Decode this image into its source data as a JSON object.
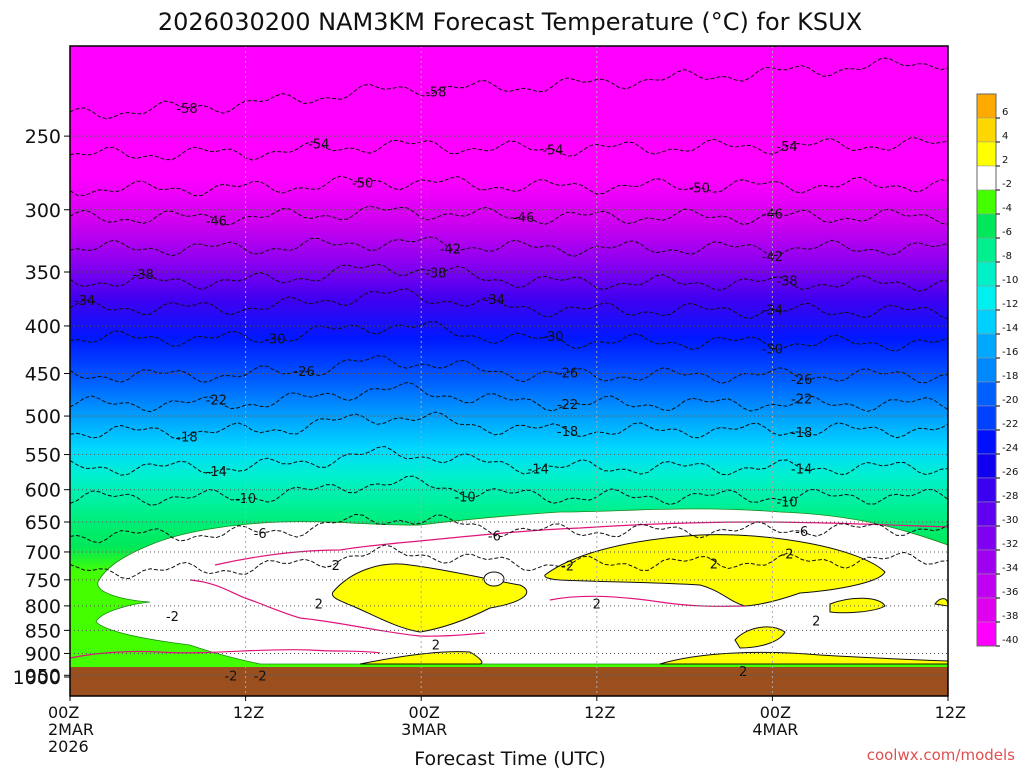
{
  "title": "2026030200 NAM3KM Forecast Temperature (°C) for KSUX",
  "watermark": "coolwx.com/models",
  "chart_data": {
    "type": "heatmap",
    "title": "2026030200 NAM3KM Forecast Temperature (°C) for KSUX",
    "xlabel": "Forecast Time (UTC)",
    "ylabel": "",
    "y_scale": "log",
    "y_reversed": true,
    "xlim_hours": [
      0,
      60
    ],
    "ylim": [
      1000,
      200
    ],
    "y_ticks": [
      250,
      300,
      350,
      400,
      450,
      500,
      550,
      600,
      650,
      700,
      750,
      800,
      850,
      900,
      950,
      1000
    ],
    "x_ticks": [
      {
        "hour": 0,
        "lines": [
          "00Z",
          "2MAR",
          "2026"
        ]
      },
      {
        "hour": 12,
        "lines": [
          "12Z"
        ]
      },
      {
        "hour": 24,
        "lines": [
          "00Z",
          "3MAR"
        ]
      },
      {
        "hour": 36,
        "lines": [
          "12Z"
        ]
      },
      {
        "hour": 48,
        "lines": [
          "00Z",
          "4MAR"
        ]
      },
      {
        "hour": 60,
        "lines": [
          "12Z"
        ]
      }
    ],
    "grid": true,
    "legend_position": "right",
    "colorbar_labels": [
      "6",
      "4",
      "2",
      "-2",
      "-4",
      "-6",
      "-8",
      "-10",
      "-12",
      "-14",
      "-16",
      "-18",
      "-20",
      "-22",
      "-24",
      "-26",
      "-28",
      "-30",
      "-32",
      "-34",
      "-36",
      "-38",
      "-40"
    ],
    "colorbar_colors": [
      "#ffaa00",
      "#ffd700",
      "#ffff00",
      "#ffffff",
      "#44ff00",
      "#00e85a",
      "#00f090",
      "#00f0c8",
      "#00f0f0",
      "#00d0ff",
      "#00a8ff",
      "#0088ff",
      "#0060ff",
      "#0040ff",
      "#0010ff",
      "#1000f0",
      "#3c00f0",
      "#6000f0",
      "#8000f0",
      "#a000f0",
      "#c000f0",
      "#e000f0",
      "#ff00ff"
    ],
    "ground_color": "#9b4e1e",
    "contours": [
      {
        "value": -58,
        "p0": 237,
        "p60": 208,
        "labels": [
          8,
          25
        ]
      },
      {
        "value": -54,
        "p0": 262,
        "p60": 255,
        "labels": [
          17,
          33,
          49
        ]
      },
      {
        "value": -50,
        "p0": 285,
        "p60": 282,
        "labels": [
          20,
          43
        ]
      },
      {
        "value": -46,
        "p0": 306,
        "p60": 305,
        "labels": [
          10,
          31,
          48
        ]
      },
      {
        "value": -42,
        "p0": 330,
        "p60": 330,
        "labels": [
          26,
          48
        ]
      },
      {
        "value": -38,
        "p0": 358,
        "p60": 360,
        "labels": [
          5,
          25,
          49
        ]
      },
      {
        "value": -34,
        "p0": 382,
        "p60": 386,
        "labels": [
          1,
          29,
          48
        ]
      },
      {
        "value": -30,
        "p0": 412,
        "p60": 418,
        "labels": [
          14,
          33,
          48
        ]
      },
      {
        "value": -26,
        "p0": 452,
        "p60": 452,
        "labels": [
          16,
          34,
          50
        ]
      },
      {
        "value": -22,
        "p0": 485,
        "p60": 485,
        "labels": [
          10,
          34,
          50
        ]
      },
      {
        "value": -18,
        "p0": 520,
        "p60": 517,
        "labels": [
          8,
          34,
          50
        ]
      },
      {
        "value": -14,
        "p0": 568,
        "p60": 568,
        "labels": [
          10,
          32,
          50
        ]
      },
      {
        "value": -10,
        "p0": 612,
        "p60": 610,
        "labels": [
          12,
          27,
          49
        ]
      },
      {
        "value": -6,
        "p0": 672,
        "p60": 660,
        "labels": [
          13,
          29,
          50
        ]
      },
      {
        "value": -2,
        "p0": 735,
        "p60": 712,
        "labels": [
          18,
          34,
          49
        ]
      }
    ],
    "extra_labels": [
      {
        "value": "2",
        "hour": 17,
        "p": 795
      },
      {
        "value": "2",
        "hour": 36,
        "p": 795
      },
      {
        "value": "2",
        "hour": 44,
        "p": 720
      },
      {
        "value": "2",
        "hour": 25,
        "p": 880
      },
      {
        "value": "2",
        "hour": 46,
        "p": 940
      },
      {
        "value": "2",
        "hour": 51,
        "p": 830
      },
      {
        "value": "-2",
        "hour": 7,
        "p": 820
      },
      {
        "value": "-2",
        "hour": 11,
        "p": 950
      },
      {
        "value": "-2",
        "hour": 13,
        "p": 950
      }
    ]
  }
}
